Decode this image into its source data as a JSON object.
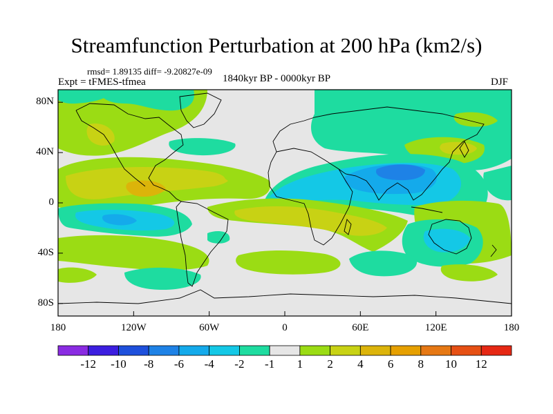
{
  "title": "Streamfunction Perturbation at 200 hPa (km2/s)",
  "stats_line": "rmsd= 1.89135 diff= -9.20827e-09",
  "experiment": "Expt = tFMES-tfmea",
  "period": "1840kyr BP - 0000kyr BP",
  "season": "DJF",
  "lat_labels": [
    {
      "text": "80N",
      "value": 80
    },
    {
      "text": "40N",
      "value": 40
    },
    {
      "text": "0",
      "value": 0
    },
    {
      "text": "40S",
      "value": -40
    },
    {
      "text": "80S",
      "value": -80
    }
  ],
  "lon_labels": [
    {
      "text": "180",
      "value": -180
    },
    {
      "text": "120W",
      "value": -120
    },
    {
      "text": "60W",
      "value": -60
    },
    {
      "text": "0",
      "value": 0
    },
    {
      "text": "60E",
      "value": 60
    },
    {
      "text": "120E",
      "value": 120
    },
    {
      "text": "180",
      "value": 180
    }
  ],
  "colorbar": {
    "colors": [
      "#8a2be2",
      "#3c1ee0",
      "#1e50dc",
      "#1e82e6",
      "#14aaeb",
      "#14c8e6",
      "#1edca0",
      "#e6e6e6",
      "#9bdc14",
      "#c8d214",
      "#dcb40a",
      "#e6a000",
      "#e67814",
      "#e65014",
      "#e62814"
    ],
    "labels": [
      "-12",
      "-10",
      "-8",
      "-6",
      "-4",
      "-2",
      "-1",
      "1",
      "2",
      "4",
      "6",
      "8",
      "10",
      "12"
    ]
  },
  "fill_colors": {
    "background": "#e6e6e6",
    "neg_weak": "#1edca0",
    "neg_mid": "#14c8e6",
    "neg_strong": "#14aaeb",
    "neg_max": "#1e82e6",
    "pos_weak": "#9bdc14",
    "pos_mid": "#c8d214",
    "pos_strong": "#dcb40a",
    "pos_max": "#e6a000"
  }
}
